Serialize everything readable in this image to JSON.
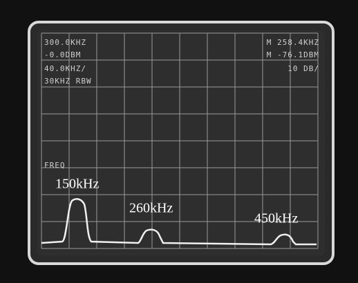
{
  "screen": {
    "top_left": [
      "300.0KHZ",
      "-0.0DBM",
      "40.0KHZ/",
      "30KHZ RBW"
    ],
    "top_right": [
      "M 258.4KHZ",
      "M -76.1DBM",
      "10 DB/"
    ],
    "mode_label": "FREQ"
  },
  "annotations": [
    "150kHz",
    "260kHz",
    "450kHz"
  ]
}
